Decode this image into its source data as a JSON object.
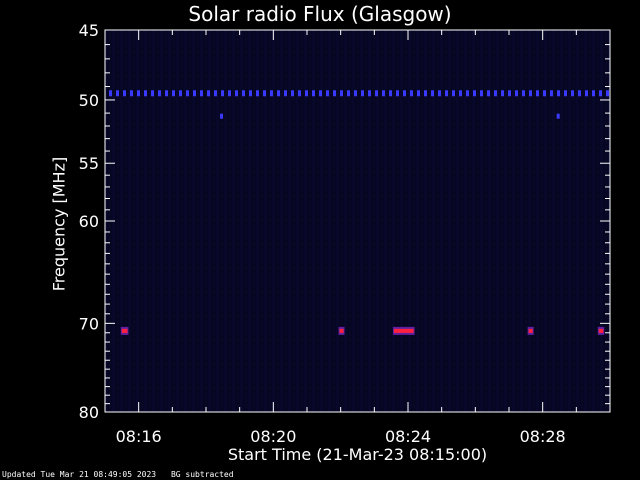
{
  "chart_data": {
    "type": "heatmap",
    "title": "Solar radio Flux (Glasgow)",
    "ylabel": "Frequency [MHz]",
    "xlabel": "Start Time (21-Mar-23 08:15:00)",
    "ylim": [
      45,
      80
    ],
    "y_scale": "log",
    "y_ticks": [
      45,
      50,
      55,
      60,
      70,
      80
    ],
    "xlim": [
      "08:15:00",
      "08:30:00"
    ],
    "x_ticks": [
      "08:16",
      "08:20",
      "08:24",
      "08:28"
    ],
    "background_color": "#050520",
    "rfi_color": "#3a3aff",
    "burst_color": "#ff2040",
    "events": [
      {
        "freq": 49.5,
        "kind": "continuous-line",
        "t_start": "08:15:00",
        "t_end": "08:30:00"
      },
      {
        "freq": 51.2,
        "kind": "spot",
        "t_start": "08:18:25",
        "t_end": "08:18:30"
      },
      {
        "freq": 51.2,
        "kind": "spot",
        "t_start": "08:28:25",
        "t_end": "08:28:30"
      },
      {
        "freq": 70.8,
        "kind": "burst",
        "t_start": "08:15:30",
        "t_end": "08:15:40"
      },
      {
        "freq": 70.8,
        "kind": "burst",
        "t_start": "08:21:58",
        "t_end": "08:22:05"
      },
      {
        "freq": 70.8,
        "kind": "burst",
        "t_start": "08:23:35",
        "t_end": "08:24:10"
      },
      {
        "freq": 70.8,
        "kind": "burst",
        "t_start": "08:27:35",
        "t_end": "08:27:42"
      },
      {
        "freq": 70.8,
        "kind": "burst",
        "t_start": "08:29:40",
        "t_end": "08:29:48"
      }
    ]
  },
  "footer": {
    "updated": "Updated Tue Mar 21 08:49:05 2023",
    "note": "BG subtracted"
  }
}
